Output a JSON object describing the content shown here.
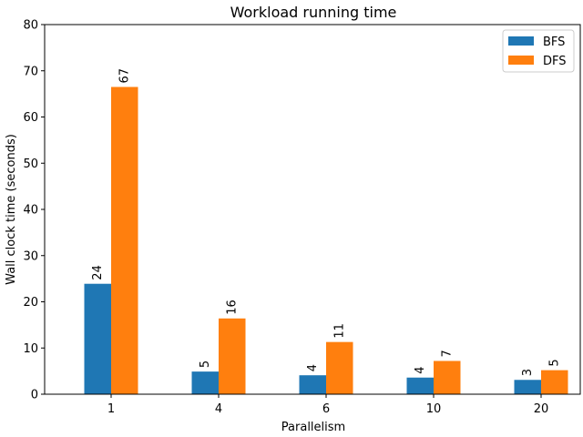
{
  "chart_data": {
    "type": "bar",
    "title": "Workload running time",
    "xlabel": "Parallelism",
    "ylabel": "Wall clock time (seconds)",
    "categories": [
      "1",
      "4",
      "6",
      "10",
      "20"
    ],
    "ylim": [
      0,
      80
    ],
    "yticks": [
      0,
      10,
      20,
      30,
      40,
      50,
      60,
      70,
      80
    ],
    "grid": false,
    "legend_position": "top-right",
    "series": [
      {
        "name": "BFS",
        "color": "#1f77b4",
        "values": [
          23.9,
          4.9,
          4.1,
          3.6,
          3.1
        ],
        "labels": [
          "24",
          "5",
          "4",
          "4",
          "3"
        ]
      },
      {
        "name": "DFS",
        "color": "#ff7f0e",
        "values": [
          66.5,
          16.4,
          11.3,
          7.2,
          5.2
        ],
        "labels": [
          "67",
          "16",
          "11",
          "7",
          "5"
        ]
      }
    ]
  }
}
